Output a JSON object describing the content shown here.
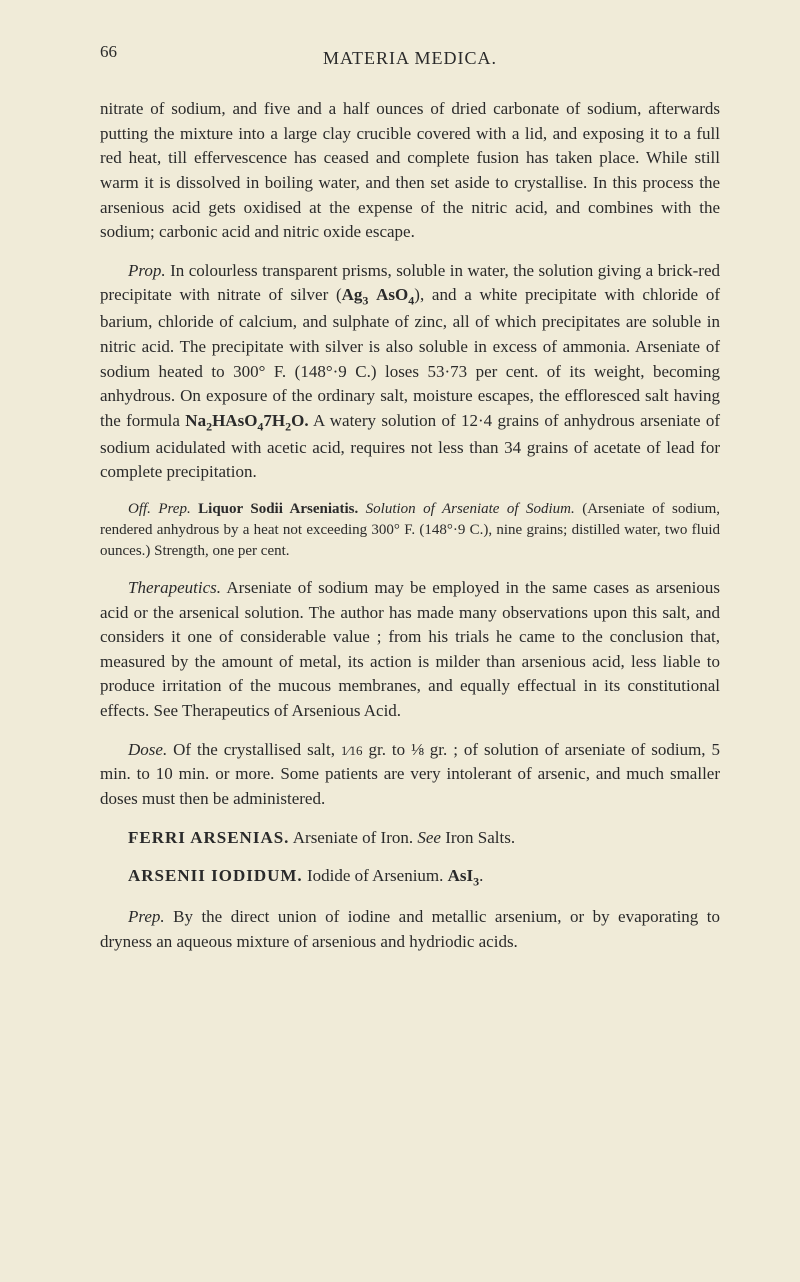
{
  "page": {
    "number": "66",
    "header": "MATERIA MEDICA.",
    "background_color": "#f0ebd8",
    "text_color": "#2a2a2a",
    "body_fontsize": 17,
    "small_fontsize": 15,
    "header_fontsize": 18
  },
  "paragraphs": {
    "p1": "nitrate of sodium, and five and a half ounces of dried carbonate of sodium, afterwards putting the mixture into a large clay crucible covered with a lid, and exposing it to a full red heat, till efferves­cence has ceased and complete fusion has taken place. While still warm it is dissolved in boiling water, and then set aside to crys­tallise. In this process the arsenious acid gets oxidised at the expense of the nitric acid, and combines with the sodium; carbonic acid and nitric oxide escape.",
    "p2_prop": "Prop.",
    "p2_a": " In colourless transparent prisms, soluble in water, the solution giving a brick-red precipitate with nitrate of silver (",
    "p2_formula1": "Ag",
    "p2_sub1": "3",
    "p2_formula2": "AsO",
    "p2_sub2": "4",
    "p2_b": "), and a white precipitate with chloride of barium, chloride of calcium, and sulphate of zinc, all of which precipitates are soluble in nitric acid. The precipitate with silver is also soluble in excess of ammonia. Arseniate of sodium heated to 300° F. (148°·9 C.) loses 53·73 per cent. of its weight, becoming anhydrous. On exposure of the ordinary salt, moisture escapes, the effloresced salt having the formula ",
    "p2_formula3": "Na",
    "p2_sub3": "2",
    "p2_formula4": "HAsO",
    "p2_sub4": "4",
    "p2_formula5": "7H",
    "p2_sub5": "2",
    "p2_formula6": "O.",
    "p2_c": " A watery solution of 12·4 grains of anhydrous arseniate of sodium acidulated with acetic acid, requires not less than 34 grains of acetate of lead for complete precipitation.",
    "p3_off": "Off. Prep.",
    "p3_liquor": " Liquor Sodii Arseniatis.",
    "p3_solution": " Solution of Arseniate of Sodium.",
    "p3_body": " (Arseniate of sodium, rendered anhydrous by a heat not exceeding 300° F. (148°·9 C.), nine grains; distilled water, two fluid ounces.) Strength, one per cent.",
    "p4_therap": "Therapeutics.",
    "p4_body": " Arseniate of sodium may be employed in the same cases as arsenious acid or the arsenical solution. The author has made many observations upon this salt, and considers it one of considerable value ; from his trials he came to the conclusion that, measured by the amount of metal, its action is milder than arsenious acid, less liable to produce irritation of the mucous membranes, and equally effectual in its constitutional effects. See Therapeutics of Arsenious Acid.",
    "p5_dose": "Dose.",
    "p5_a": " Of the crystallised salt, ",
    "p5_frac1": "1⁄16",
    "p5_b": " gr. to ",
    "p5_frac2": "⅛",
    "p5_c": " gr. ; of solution of arseniate of sodium, 5 min. to 10 min. or more. Some patients are very intolerant of arsenic, and much smaller doses must then be administered.",
    "entry1_title": "FERRI ARSENIAS.",
    "entry1_desc": " Arseniate of Iron. ",
    "entry1_see": "See",
    "entry1_ref": " Iron Salts.",
    "entry2_title": "ARSENII IODIDUM.",
    "entry2_desc": " Iodide of Arsenium. ",
    "entry2_formula": "AsI",
    "entry2_sub": "3",
    "entry2_period": ".",
    "p6_prep": "Prep.",
    "p6_body": " By the direct union of iodine and metallic arsenium, or by evaporating to dryness an aqueous mixture of arsenious and hydriodic acids."
  }
}
